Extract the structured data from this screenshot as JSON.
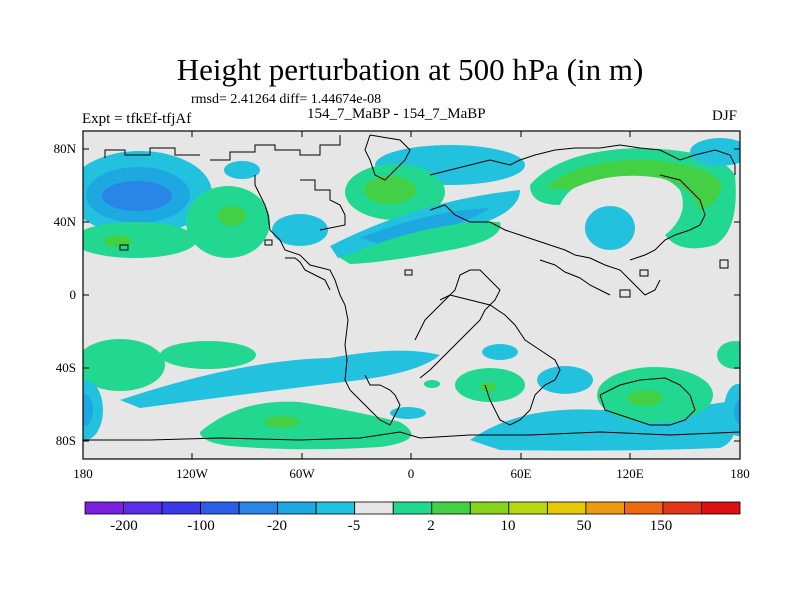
{
  "title": "Height perturbation at 500 hPa (in m)",
  "stats_text": "rmsd= 2.41264 diff= 1.44674e-08",
  "experiment_label": "Expt = tfkEf-tfjAf",
  "subtitle": "154_7_MaBP - 154_7_MaBP",
  "season": "DJF",
  "map": {
    "lat_ticks": [
      "80N",
      "40N",
      "0",
      "40S",
      "80S"
    ],
    "lon_ticks": [
      "180",
      "120W",
      "60W",
      "0",
      "60E",
      "120E",
      "180"
    ]
  },
  "colorbar": {
    "labels": [
      "-200",
      "-100",
      "-20",
      "-5",
      "2",
      "10",
      "50",
      "150"
    ],
    "colors": [
      "#7a1fe0",
      "#5a2ee6",
      "#3a3ae8",
      "#2a5ee8",
      "#2a86e6",
      "#1ea8e2",
      "#22c2de",
      "#e6e6e6",
      "#22d890",
      "#44d044",
      "#88d41c",
      "#b8d814",
      "#e4c80a",
      "#ec9a12",
      "#ec6a12",
      "#e4341a",
      "#dc1212"
    ]
  },
  "colors": {
    "background": "#e6e6e6",
    "positive_light": "#22d890",
    "positive_strong": "#44d044",
    "negative_light": "#22c2de",
    "negative_mid": "#1ea8e2",
    "negative_strong": "#2a86e6"
  }
}
